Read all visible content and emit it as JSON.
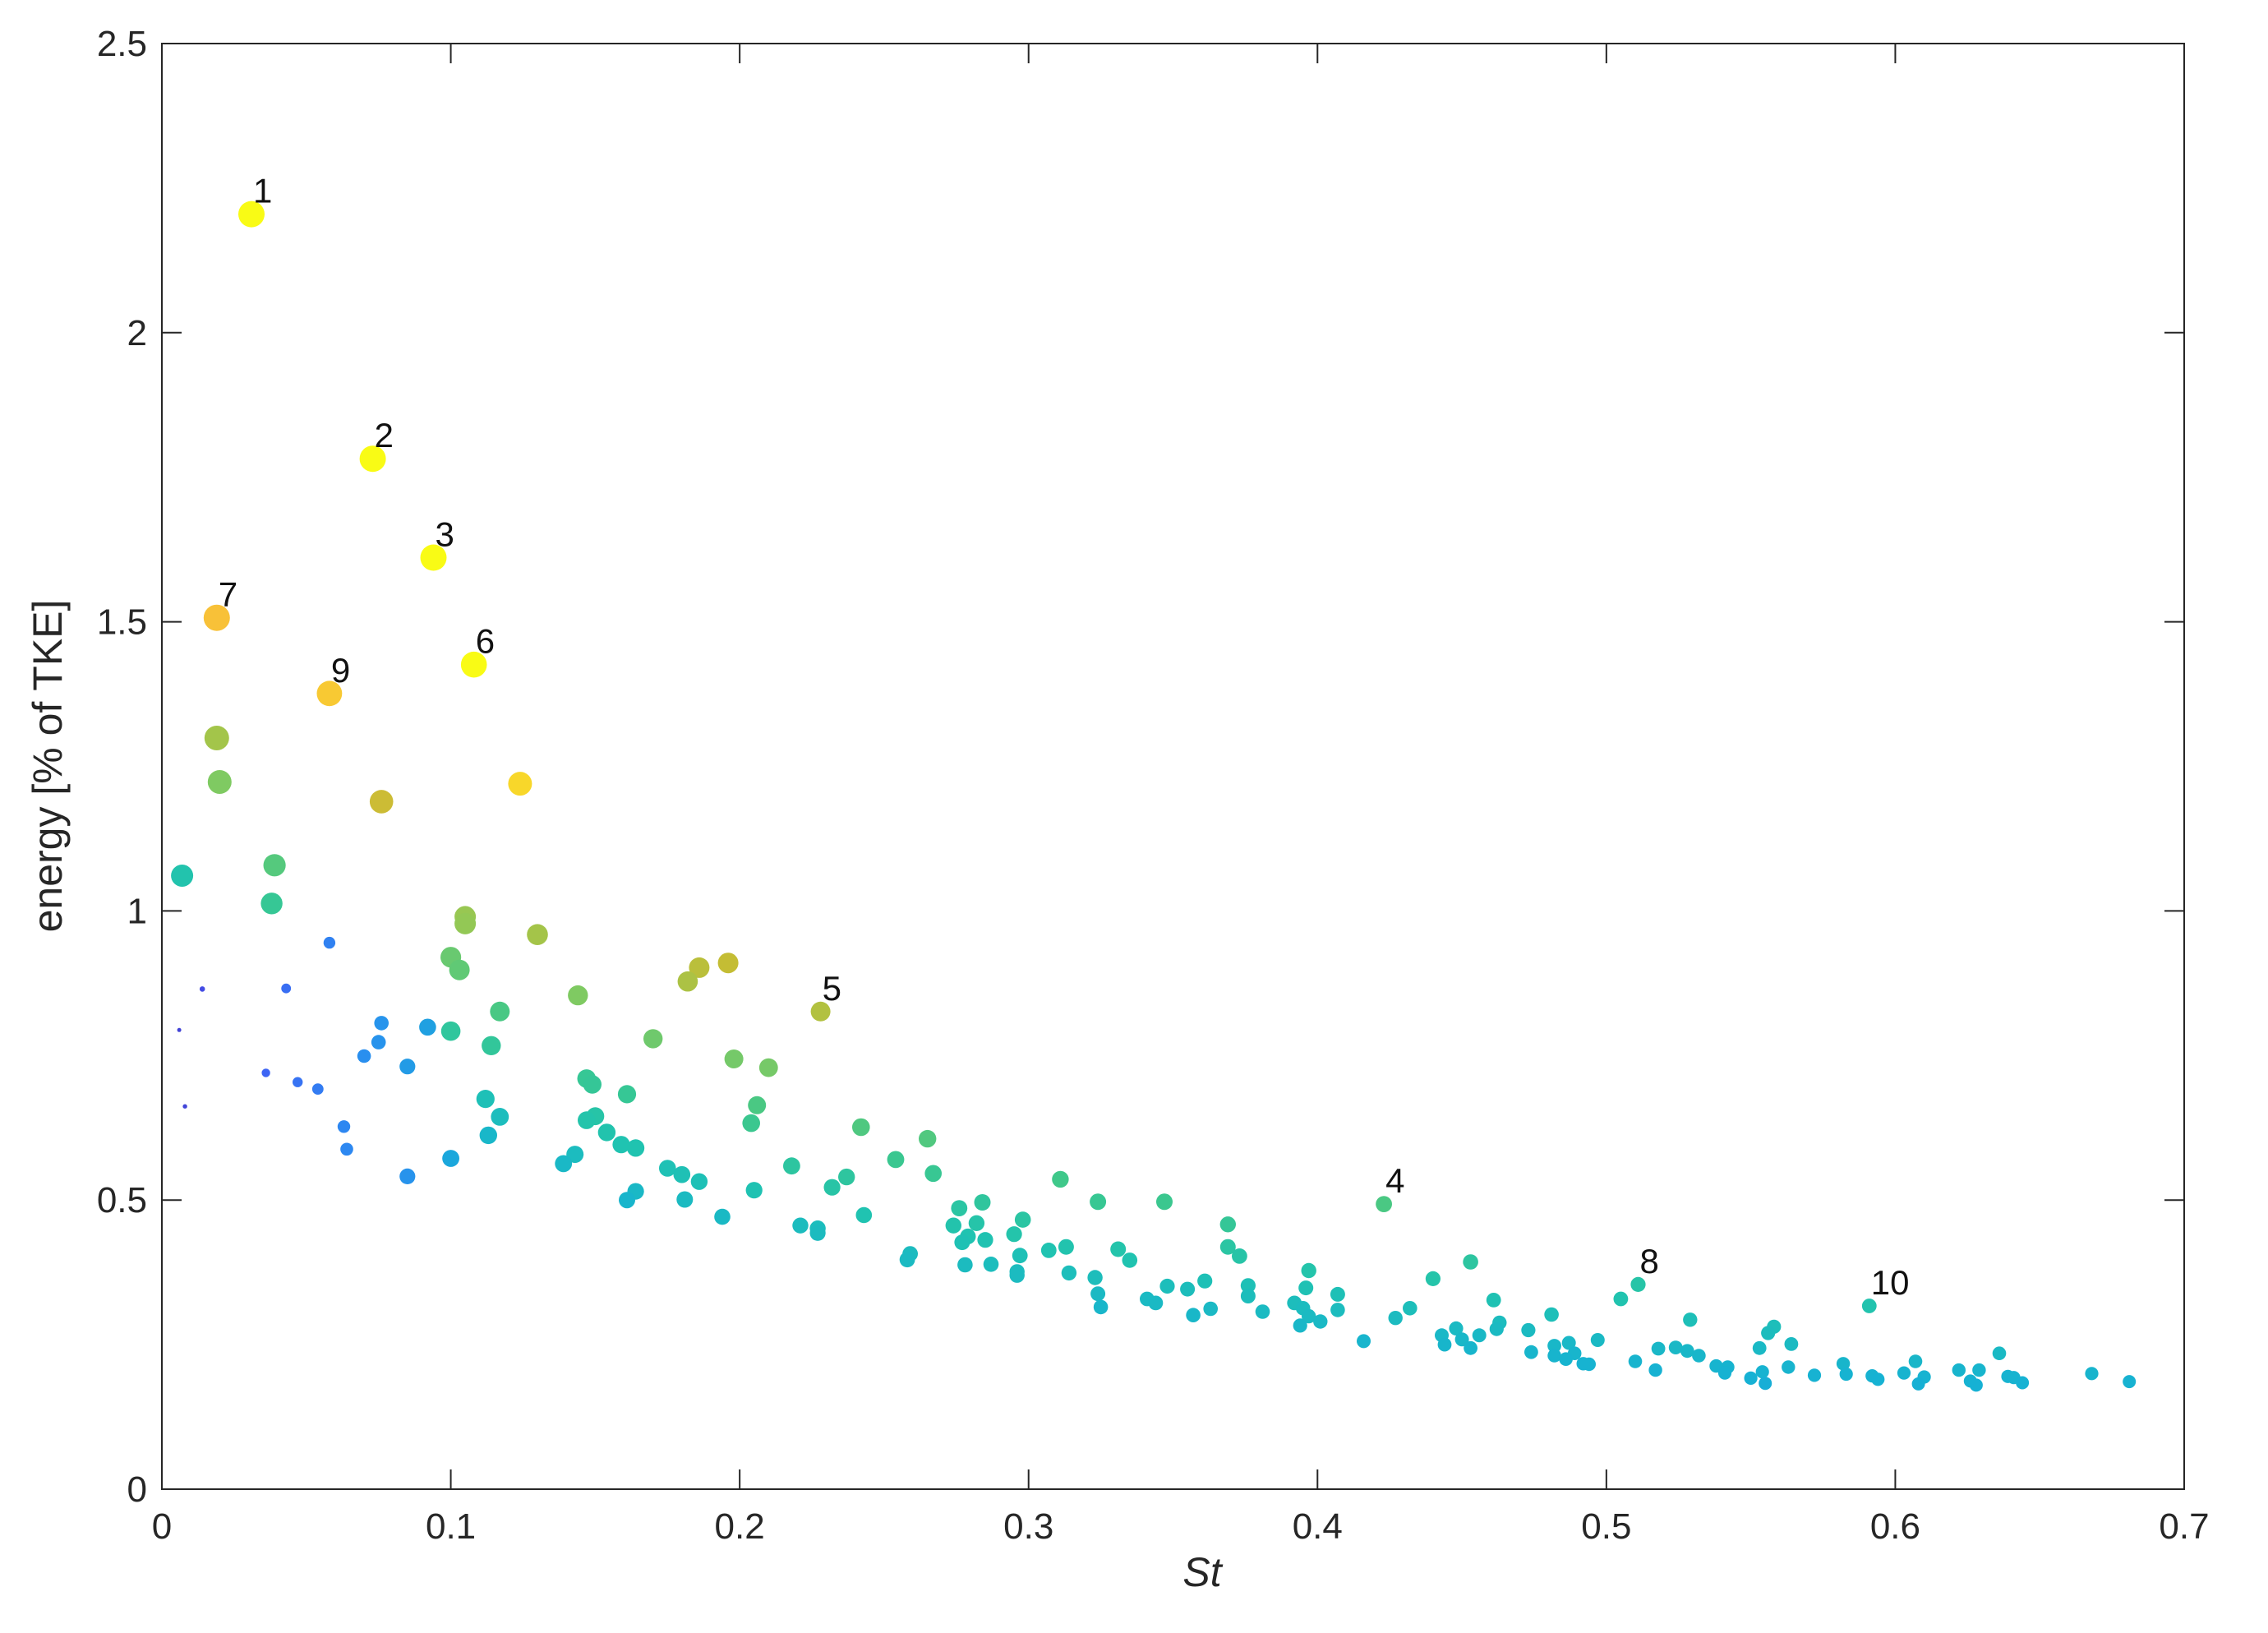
{
  "chart_data": {
    "type": "scatter",
    "title": "",
    "xlabel": "St",
    "ylabel": "energy [% of TKE]",
    "xlim": [
      0,
      0.7
    ],
    "ylim": [
      0,
      2.5
    ],
    "xticks": [
      0,
      0.1,
      0.2,
      0.3,
      0.4,
      0.5,
      0.6,
      0.7
    ],
    "xtick_labels": [
      "0",
      "0.1",
      "0.2",
      "0.3",
      "0.4",
      "0.5",
      "0.6",
      "0.7"
    ],
    "yticks": [
      0,
      0.5,
      1,
      1.5,
      2,
      2.5
    ],
    "ytick_labels": [
      "0",
      "0.5",
      "1",
      "1.5",
      "2",
      "2.5"
    ],
    "grid": false,
    "box": true,
    "colormap": [
      "#3e26a8",
      "#4457f6",
      "#2a8ef0",
      "#16b1d4",
      "#20c3b0",
      "#3fc88a",
      "#8cca5a",
      "#c3bd34",
      "#f8ba3c",
      "#f9fb15"
    ],
    "labeled_points": [
      {
        "label": "1",
        "x": 0.031,
        "y": 2.205
      },
      {
        "label": "2",
        "x": 0.073,
        "y": 1.782
      },
      {
        "label": "3",
        "x": 0.094,
        "y": 1.611
      },
      {
        "label": "7",
        "x": 0.019,
        "y": 1.507
      },
      {
        "label": "6",
        "x": 0.108,
        "y": 1.426
      },
      {
        "label": "9",
        "x": 0.058,
        "y": 1.376
      },
      {
        "label": "5",
        "x": 0.228,
        "y": 0.826
      },
      {
        "label": "4",
        "x": 0.423,
        "y": 0.493
      },
      {
        "label": "8",
        "x": 0.511,
        "y": 0.354
      },
      {
        "label": "10",
        "x": 0.591,
        "y": 0.317
      }
    ],
    "points": [
      [
        0.031,
        2.205
      ],
      [
        0.073,
        1.782
      ],
      [
        0.094,
        1.611
      ],
      [
        0.019,
        1.507
      ],
      [
        0.108,
        1.426
      ],
      [
        0.058,
        1.376
      ],
      [
        0.228,
        0.826
      ],
      [
        0.423,
        0.493
      ],
      [
        0.511,
        0.354
      ],
      [
        0.591,
        0.317
      ],
      [
        0.019,
        1.299
      ],
      [
        0.02,
        1.223
      ],
      [
        0.076,
        1.189
      ],
      [
        0.124,
        1.22
      ],
      [
        0.007,
        1.061
      ],
      [
        0.039,
        1.079
      ],
      [
        0.038,
        1.013
      ],
      [
        0.058,
        0.945
      ],
      [
        0.105,
        0.99
      ],
      [
        0.105,
        0.978
      ],
      [
        0.13,
        0.959
      ],
      [
        0.1,
        0.92
      ],
      [
        0.103,
        0.898
      ],
      [
        0.196,
        0.91
      ],
      [
        0.186,
        0.902
      ],
      [
        0.182,
        0.878
      ],
      [
        0.014,
        0.865
      ],
      [
        0.043,
        0.866
      ],
      [
        0.144,
        0.854
      ],
      [
        0.117,
        0.826
      ],
      [
        0.076,
        0.806
      ],
      [
        0.092,
        0.799
      ],
      [
        0.006,
        0.794
      ],
      [
        0.1,
        0.792
      ],
      [
        0.075,
        0.773
      ],
      [
        0.114,
        0.767
      ],
      [
        0.17,
        0.779
      ],
      [
        0.07,
        0.749
      ],
      [
        0.085,
        0.731
      ],
      [
        0.198,
        0.744
      ],
      [
        0.21,
        0.729
      ],
      [
        0.036,
        0.72
      ],
      [
        0.047,
        0.704
      ],
      [
        0.054,
        0.692
      ],
      [
        0.147,
        0.71
      ],
      [
        0.149,
        0.7
      ],
      [
        0.161,
        0.683
      ],
      [
        0.112,
        0.675
      ],
      [
        0.206,
        0.664
      ],
      [
        0.008,
        0.662
      ],
      [
        0.117,
        0.644
      ],
      [
        0.15,
        0.645
      ],
      [
        0.147,
        0.638
      ],
      [
        0.204,
        0.633
      ],
      [
        0.063,
        0.627
      ],
      [
        0.242,
        0.626
      ],
      [
        0.265,
        0.606
      ],
      [
        0.154,
        0.617
      ],
      [
        0.113,
        0.612
      ],
      [
        0.159,
        0.596
      ],
      [
        0.164,
        0.59
      ],
      [
        0.064,
        0.588
      ],
      [
        0.143,
        0.579
      ],
      [
        0.1,
        0.572
      ],
      [
        0.139,
        0.563
      ],
      [
        0.254,
        0.57
      ],
      [
        0.218,
        0.559
      ],
      [
        0.175,
        0.555
      ],
      [
        0.18,
        0.544
      ],
      [
        0.267,
        0.546
      ],
      [
        0.085,
        0.541
      ],
      [
        0.237,
        0.54
      ],
      [
        0.311,
        0.536
      ],
      [
        0.186,
        0.532
      ],
      [
        0.232,
        0.522
      ],
      [
        0.205,
        0.517
      ],
      [
        0.164,
        0.515
      ],
      [
        0.181,
        0.501
      ],
      [
        0.161,
        0.5
      ],
      [
        0.284,
        0.496
      ],
      [
        0.324,
        0.497
      ],
      [
        0.347,
        0.497
      ],
      [
        0.276,
        0.486
      ],
      [
        0.243,
        0.474
      ],
      [
        0.194,
        0.471
      ],
      [
        0.298,
        0.466
      ],
      [
        0.282,
        0.46
      ],
      [
        0.369,
        0.458
      ],
      [
        0.221,
        0.456
      ],
      [
        0.274,
        0.456
      ],
      [
        0.227,
        0.451
      ],
      [
        0.227,
        0.443
      ],
      [
        0.295,
        0.441
      ],
      [
        0.279,
        0.437
      ],
      [
        0.285,
        0.431
      ],
      [
        0.277,
        0.427
      ],
      [
        0.369,
        0.419
      ],
      [
        0.313,
        0.419
      ],
      [
        0.307,
        0.413
      ],
      [
        0.331,
        0.415
      ],
      [
        0.259,
        0.407
      ],
      [
        0.297,
        0.404
      ],
      [
        0.373,
        0.403
      ],
      [
        0.258,
        0.397
      ],
      [
        0.335,
        0.396
      ],
      [
        0.453,
        0.393
      ],
      [
        0.287,
        0.389
      ],
      [
        0.278,
        0.388
      ],
      [
        0.397,
        0.378
      ],
      [
        0.296,
        0.376
      ],
      [
        0.314,
        0.374
      ],
      [
        0.296,
        0.37
      ],
      [
        0.323,
        0.366
      ],
      [
        0.44,
        0.364
      ],
      [
        0.361,
        0.36
      ],
      [
        0.348,
        0.351
      ],
      [
        0.376,
        0.352
      ],
      [
        0.396,
        0.348
      ],
      [
        0.355,
        0.346
      ],
      [
        0.407,
        0.337
      ],
      [
        0.324,
        0.338
      ],
      [
        0.376,
        0.334
      ],
      [
        0.461,
        0.327
      ],
      [
        0.341,
        0.329
      ],
      [
        0.505,
        0.329
      ],
      [
        0.344,
        0.322
      ],
      [
        0.392,
        0.322
      ],
      [
        0.432,
        0.313
      ],
      [
        0.325,
        0.315
      ],
      [
        0.363,
        0.312
      ],
      [
        0.395,
        0.313
      ],
      [
        0.407,
        0.31
      ],
      [
        0.381,
        0.307
      ],
      [
        0.357,
        0.301
      ],
      [
        0.481,
        0.302
      ],
      [
        0.397,
        0.299
      ],
      [
        0.427,
        0.296
      ],
      [
        0.529,
        0.293
      ],
      [
        0.401,
        0.29
      ],
      [
        0.394,
        0.283
      ],
      [
        0.463,
        0.288
      ],
      [
        0.558,
        0.281
      ],
      [
        0.448,
        0.278
      ],
      [
        0.462,
        0.277
      ],
      [
        0.473,
        0.275
      ],
      [
        0.556,
        0.27
      ],
      [
        0.443,
        0.266
      ],
      [
        0.456,
        0.266
      ],
      [
        0.45,
        0.259
      ],
      [
        0.416,
        0.256
      ],
      [
        0.497,
        0.258
      ],
      [
        0.487,
        0.253
      ],
      [
        0.444,
        0.25
      ],
      [
        0.482,
        0.248
      ],
      [
        0.553,
        0.244
      ],
      [
        0.524,
        0.245
      ],
      [
        0.453,
        0.244
      ],
      [
        0.518,
        0.243
      ],
      [
        0.564,
        0.251
      ],
      [
        0.528,
        0.239
      ],
      [
        0.636,
        0.235
      ],
      [
        0.474,
        0.237
      ],
      [
        0.489,
        0.235
      ],
      [
        0.532,
        0.231
      ],
      [
        0.482,
        0.231
      ],
      [
        0.486,
        0.225
      ],
      [
        0.51,
        0.221
      ],
      [
        0.607,
        0.221
      ],
      [
        0.582,
        0.217
      ],
      [
        0.492,
        0.217
      ],
      [
        0.494,
        0.216
      ],
      [
        0.538,
        0.213
      ],
      [
        0.542,
        0.211
      ],
      [
        0.563,
        0.211
      ],
      [
        0.517,
        0.206
      ],
      [
        0.622,
        0.206
      ],
      [
        0.629,
        0.206
      ],
      [
        0.554,
        0.203
      ],
      [
        0.541,
        0.201
      ],
      [
        0.603,
        0.201
      ],
      [
        0.583,
        0.199
      ],
      [
        0.668,
        0.2
      ],
      [
        0.592,
        0.196
      ],
      [
        0.639,
        0.195
      ],
      [
        0.61,
        0.194
      ],
      [
        0.641,
        0.193
      ],
      [
        0.55,
        0.192
      ],
      [
        0.572,
        0.197
      ],
      [
        0.594,
        0.19
      ],
      [
        0.626,
        0.187
      ],
      [
        0.681,
        0.186
      ],
      [
        0.644,
        0.184
      ],
      [
        0.555,
        0.183
      ],
      [
        0.608,
        0.182
      ],
      [
        0.628,
        0.18
      ]
    ]
  }
}
